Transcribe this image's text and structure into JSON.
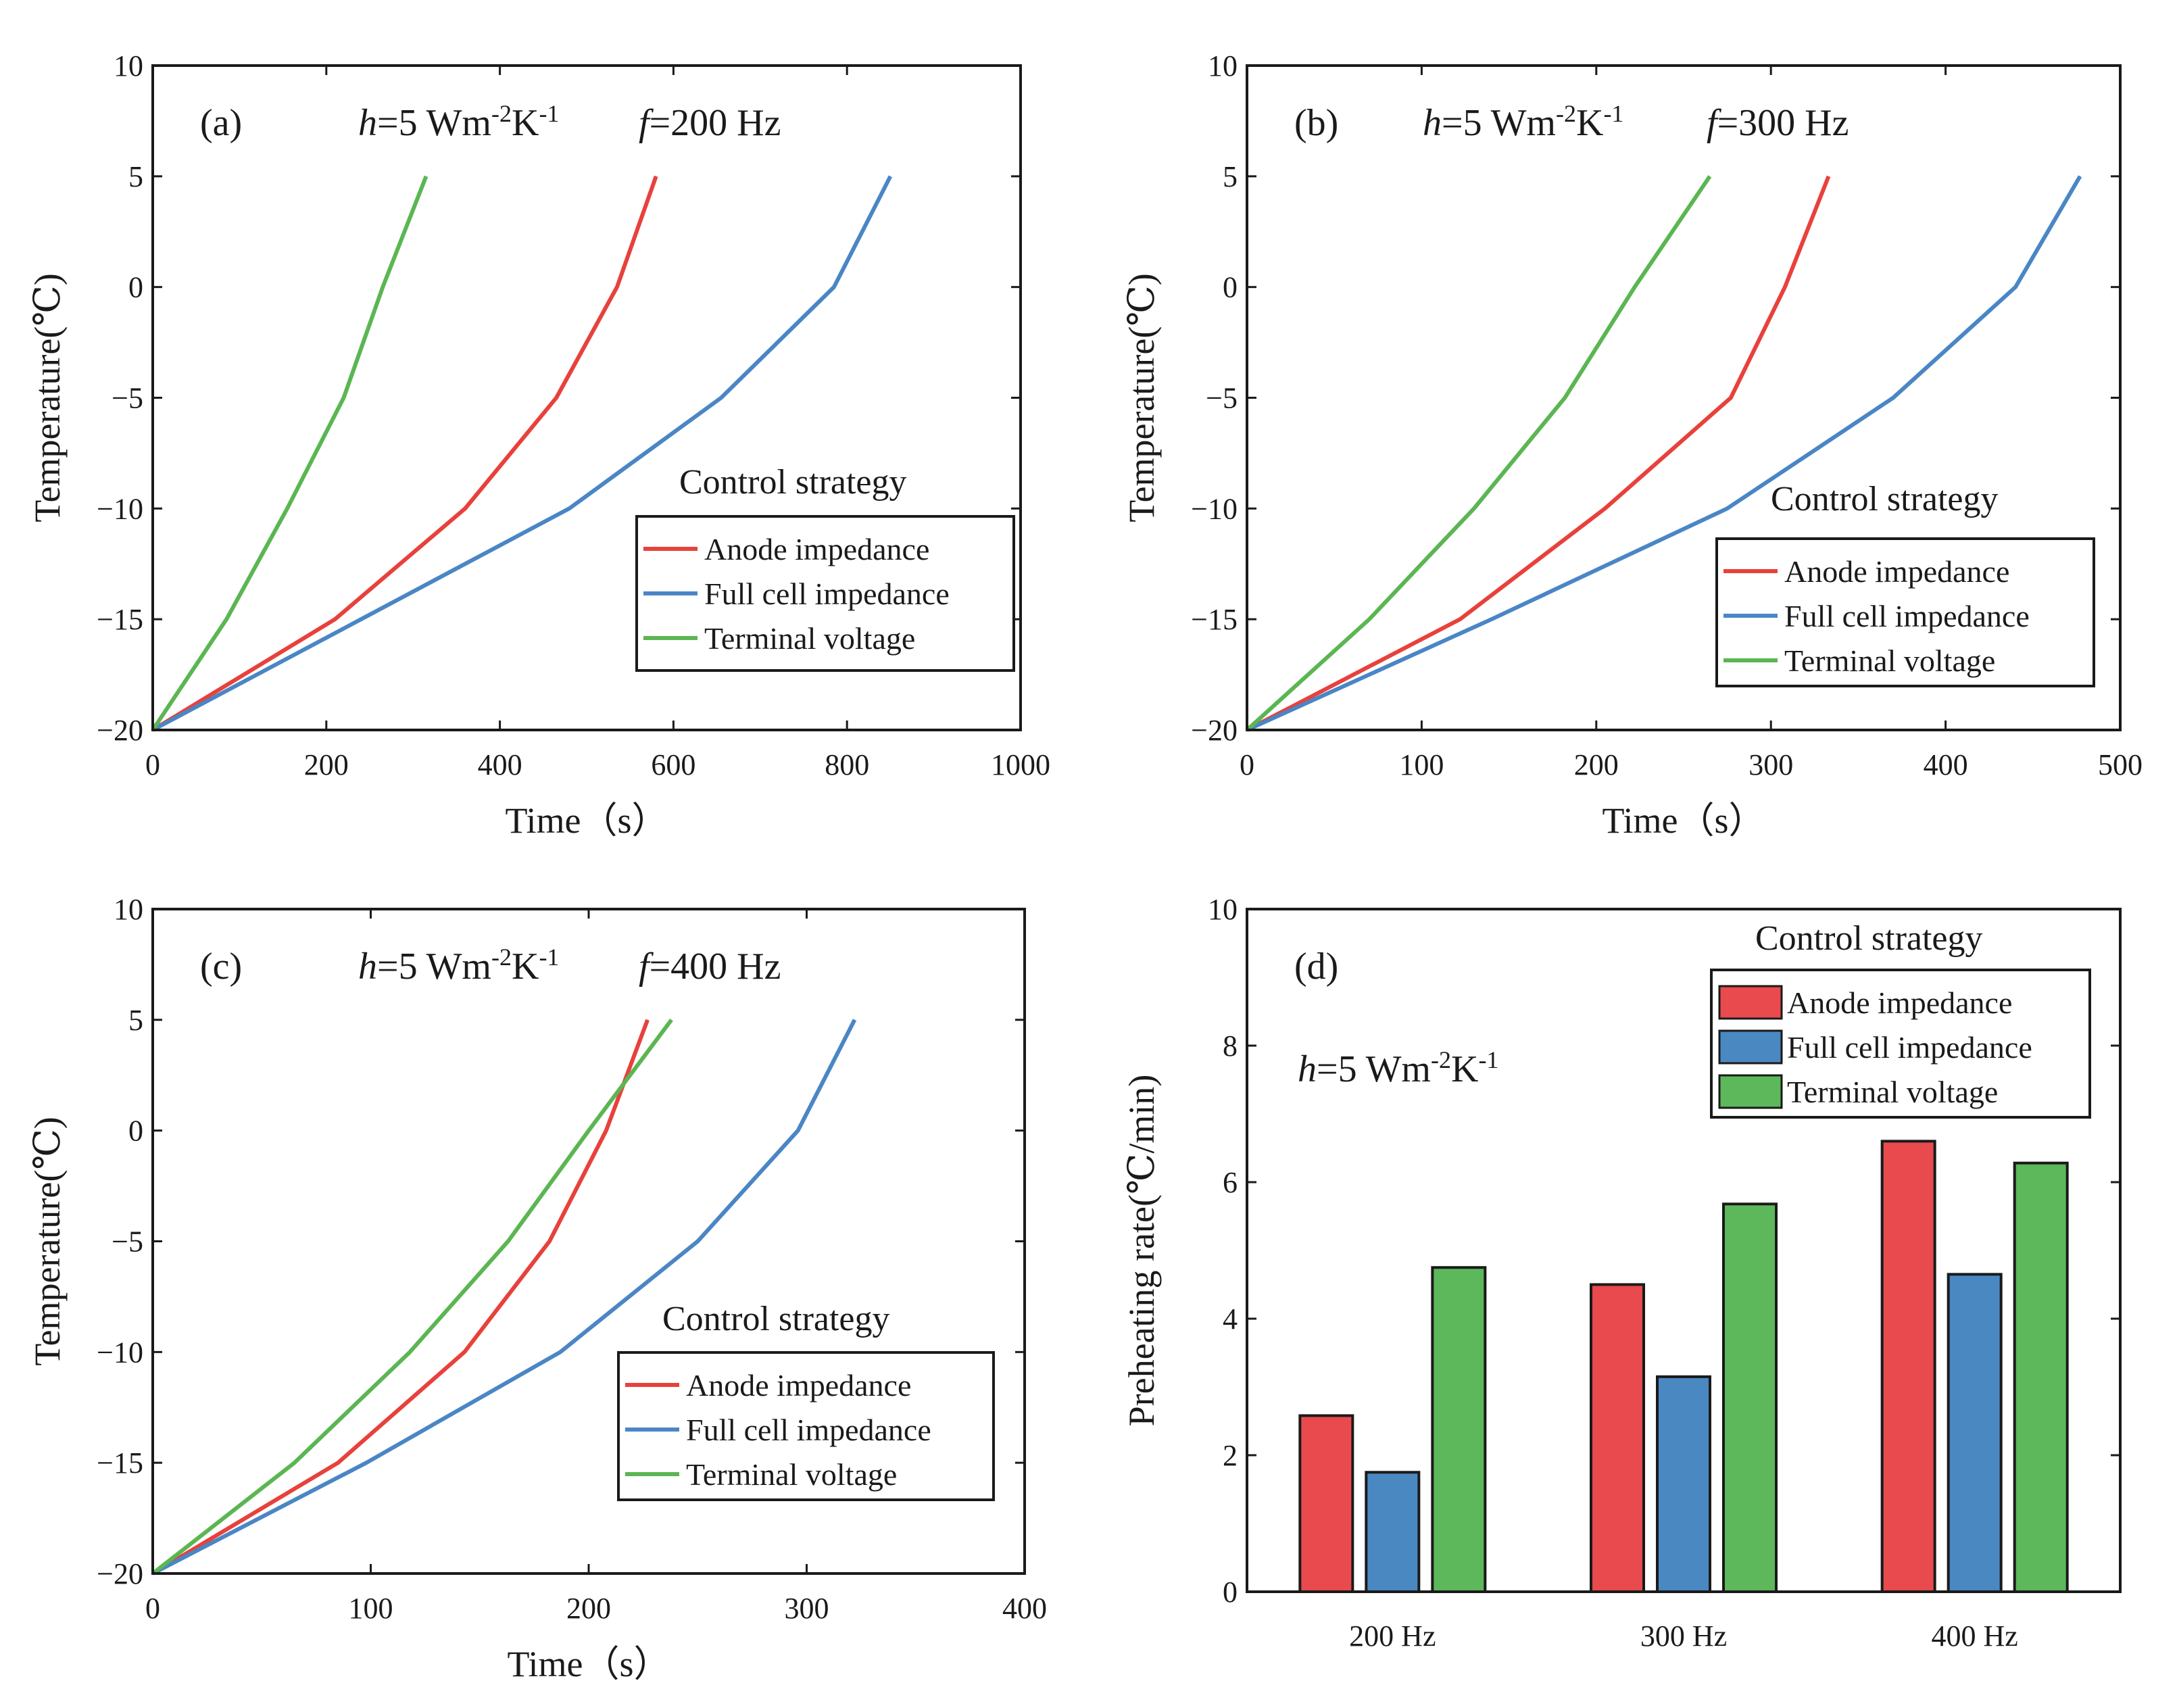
{
  "chart_data": [
    {
      "type": "line",
      "panel_label": "(a)",
      "param_h": "h=5 Wm⁻²K⁻¹",
      "param_f": "f=200 Hz",
      "xlabel": "Time（s）",
      "ylabel": "Temperature(℃)",
      "xlim": [
        0,
        1000
      ],
      "ylim": [
        -20,
        10
      ],
      "xticks": [
        0,
        200,
        400,
        600,
        800,
        1000
      ],
      "yticks": [
        -20,
        -15,
        -10,
        -5,
        0,
        5,
        10
      ],
      "legend_title": "Control strategy",
      "series": [
        {
          "name": "Anode impedance",
          "color": "#e8413c",
          "x": [
            0,
            210,
            360,
            465,
            535,
            580
          ],
          "y": [
            -20,
            -15,
            -10,
            -5,
            0,
            5
          ]
        },
        {
          "name": "Full cell impedance",
          "color": "#4a86c5",
          "x": [
            0,
            240,
            480,
            655,
            785,
            850
          ],
          "y": [
            -20,
            -15,
            -10,
            -5,
            0,
            5
          ]
        },
        {
          "name": "Terminal voltage",
          "color": "#5bb652",
          "x": [
            0,
            85,
            155,
            220,
            265,
            315
          ],
          "y": [
            -20,
            -15,
            -10,
            -5,
            0,
            5
          ]
        }
      ]
    },
    {
      "type": "line",
      "panel_label": "(b)",
      "param_h": "h=5 Wm⁻²K⁻¹",
      "param_f": "f=300 Hz",
      "xlabel": "Time（s）",
      "ylabel": "Temperature(℃)",
      "xlim": [
        0,
        500
      ],
      "ylim": [
        -20,
        10
      ],
      "xticks": [
        0,
        100,
        200,
        300,
        400,
        500
      ],
      "yticks": [
        -20,
        -15,
        -10,
        -5,
        0,
        5,
        10
      ],
      "legend_title": "Control strategy",
      "series": [
        {
          "name": "Anode impedance",
          "color": "#e8413c",
          "x": [
            0,
            122,
            205,
            277,
            308,
            333
          ],
          "y": [
            -20,
            -15,
            -10,
            -5,
            0,
            5
          ]
        },
        {
          "name": "Full cell impedance",
          "color": "#4a86c5",
          "x": [
            0,
            140,
            275,
            370,
            440,
            477
          ],
          "y": [
            -20,
            -15,
            -10,
            -5,
            0,
            5
          ]
        },
        {
          "name": "Terminal voltage",
          "color": "#5bb652",
          "x": [
            0,
            70,
            130,
            182,
            222,
            265
          ],
          "y": [
            -20,
            -15,
            -10,
            -5,
            0,
            5
          ]
        }
      ]
    },
    {
      "type": "line",
      "panel_label": "(c)",
      "param_h": "h=5 Wm⁻²K⁻¹",
      "param_f": "f=400 Hz",
      "xlabel": "Time（s）",
      "ylabel": "Temperature(℃)",
      "xlim": [
        0,
        400
      ],
      "ylim": [
        -20,
        10
      ],
      "xticks": [
        0,
        100,
        200,
        300,
        400
      ],
      "yticks": [
        -20,
        -15,
        -10,
        -5,
        0,
        5,
        10
      ],
      "legend_title": "Control strategy",
      "series": [
        {
          "name": "Anode impedance",
          "color": "#e8413c",
          "x": [
            0,
            85,
            143,
            182,
            208,
            227
          ],
          "y": [
            -20,
            -15,
            -10,
            -5,
            0,
            5
          ]
        },
        {
          "name": "Full cell impedance",
          "color": "#4a86c5",
          "x": [
            0,
            98,
            187,
            250,
            296,
            322
          ],
          "y": [
            -20,
            -15,
            -10,
            -5,
            0,
            5
          ]
        },
        {
          "name": "Terminal voltage",
          "color": "#5bb652",
          "x": [
            0,
            65,
            118,
            163,
            200,
            238
          ],
          "y": [
            -20,
            -15,
            -10,
            -5,
            0,
            5
          ]
        }
      ]
    },
    {
      "type": "bar",
      "panel_label": "(d)",
      "param_h": "h=5 Wm⁻²K⁻¹",
      "ylabel": "Preheating rate(℃/min)",
      "xlabel": "",
      "categories": [
        "200 Hz",
        "300 Hz",
        "400 Hz"
      ],
      "ylim": [
        0,
        10
      ],
      "yticks": [
        0,
        2,
        4,
        6,
        8,
        10
      ],
      "legend_title": "Control strategy",
      "series": [
        {
          "name": "Anode impedance",
          "color": "#e84a4d",
          "values": [
            2.58,
            4.5,
            6.6
          ]
        },
        {
          "name": "Full cell impedance",
          "color": "#4a88c2",
          "values": [
            1.75,
            3.15,
            4.65
          ]
        },
        {
          "name": "Terminal voltage",
          "color": "#5cb85a",
          "values": [
            4.75,
            5.68,
            6.28
          ]
        }
      ]
    }
  ]
}
